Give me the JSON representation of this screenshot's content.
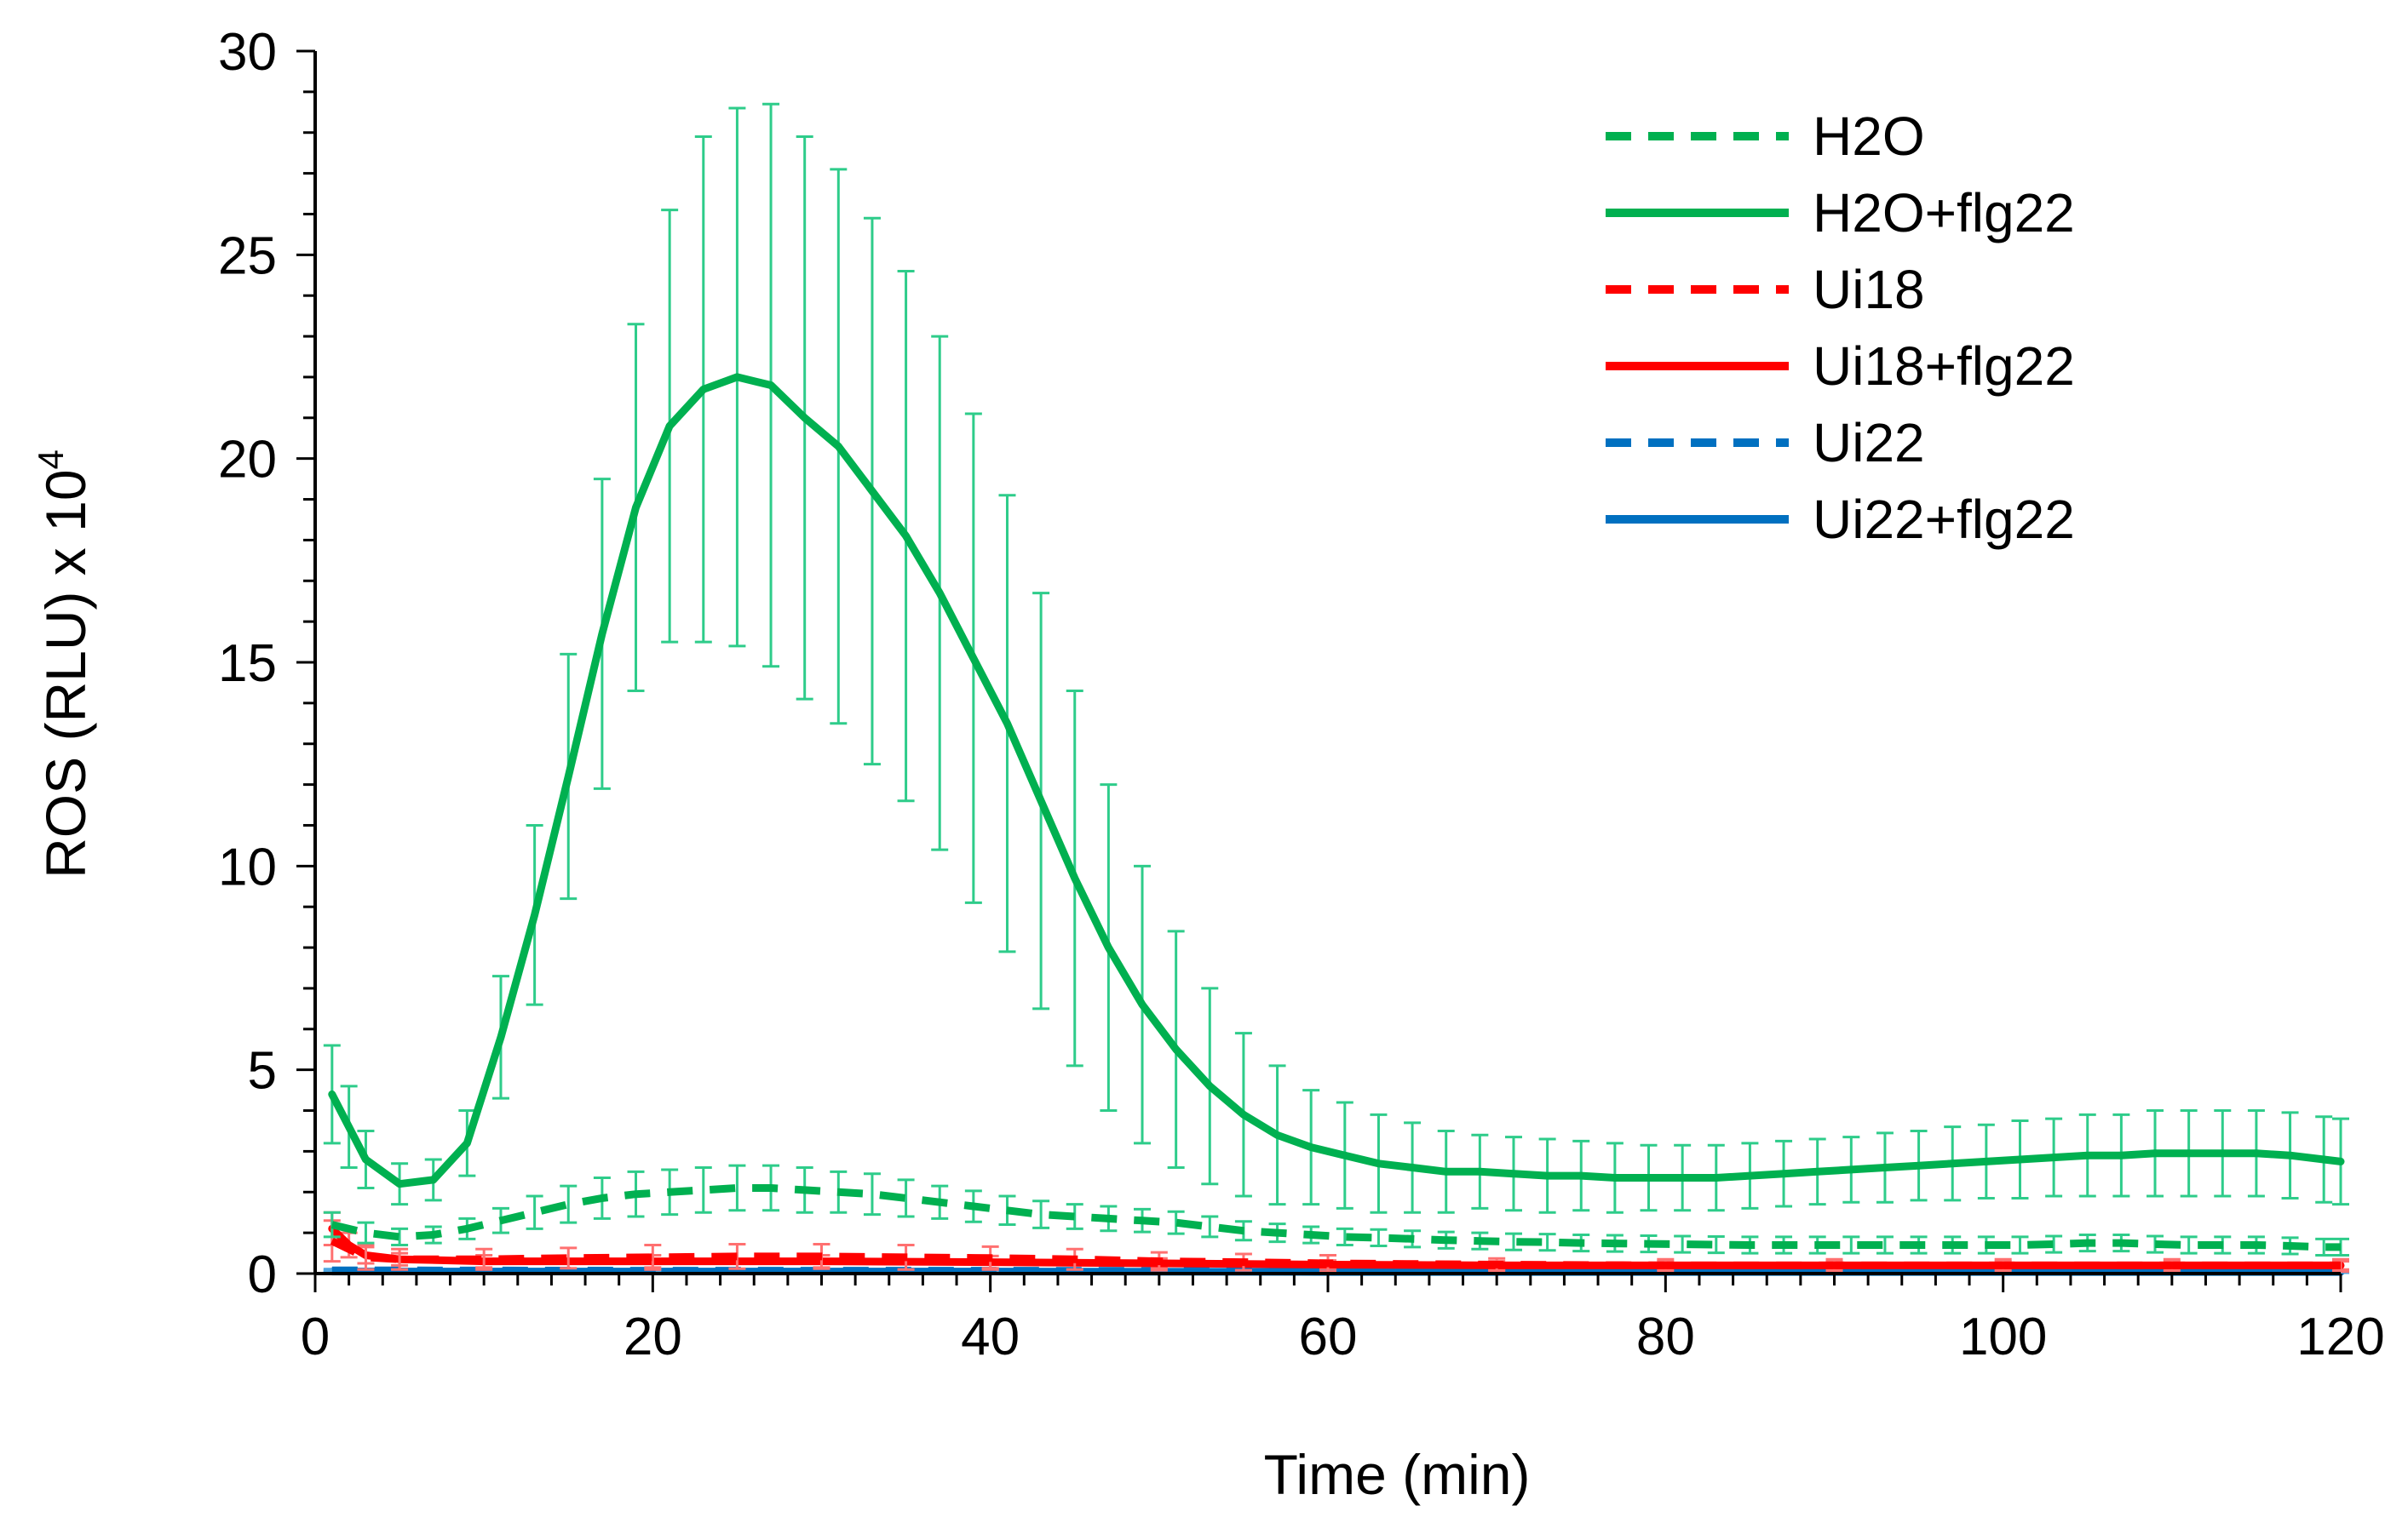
{
  "chart_data": {
    "type": "line",
    "title": "",
    "xlabel": "Time (min)",
    "ylabel": "ROS (RLU)  x 10",
    "ylabel_exponent": "4",
    "xlim": [
      0,
      120
    ],
    "ylim": [
      0,
      30
    ],
    "x_ticks": [
      0,
      20,
      40,
      60,
      80,
      100,
      120
    ],
    "y_ticks": [
      0,
      5,
      10,
      15,
      20,
      25,
      30
    ],
    "grid": false,
    "legend_position": "top-right",
    "series": [
      {
        "name": "H2O",
        "color": "#00b050",
        "error_color": "#2ecc8a",
        "dashed": true,
        "points": [
          [
            1,
            1.2
          ],
          [
            3,
            1.0
          ],
          [
            5,
            0.9
          ],
          [
            7,
            0.95
          ],
          [
            9,
            1.1
          ],
          [
            11,
            1.3
          ],
          [
            13,
            1.5
          ],
          [
            15,
            1.7
          ],
          [
            17,
            1.85
          ],
          [
            19,
            1.95
          ],
          [
            21,
            2.0
          ],
          [
            23,
            2.05
          ],
          [
            25,
            2.1
          ],
          [
            27,
            2.1
          ],
          [
            29,
            2.05
          ],
          [
            31,
            2.0
          ],
          [
            33,
            1.95
          ],
          [
            35,
            1.85
          ],
          [
            37,
            1.75
          ],
          [
            39,
            1.65
          ],
          [
            41,
            1.55
          ],
          [
            43,
            1.45
          ],
          [
            45,
            1.4
          ],
          [
            47,
            1.35
          ],
          [
            49,
            1.3
          ],
          [
            51,
            1.25
          ],
          [
            53,
            1.15
          ],
          [
            55,
            1.05
          ],
          [
            57,
            1.0
          ],
          [
            59,
            0.95
          ],
          [
            61,
            0.9
          ],
          [
            63,
            0.88
          ],
          [
            65,
            0.85
          ],
          [
            67,
            0.82
          ],
          [
            69,
            0.8
          ],
          [
            71,
            0.78
          ],
          [
            73,
            0.77
          ],
          [
            75,
            0.75
          ],
          [
            77,
            0.74
          ],
          [
            79,
            0.73
          ],
          [
            81,
            0.72
          ],
          [
            83,
            0.71
          ],
          [
            85,
            0.7
          ],
          [
            87,
            0.7
          ],
          [
            89,
            0.7
          ],
          [
            91,
            0.7
          ],
          [
            93,
            0.7
          ],
          [
            95,
            0.7
          ],
          [
            97,
            0.7
          ],
          [
            99,
            0.7
          ],
          [
            101,
            0.7
          ],
          [
            103,
            0.72
          ],
          [
            105,
            0.75
          ],
          [
            107,
            0.75
          ],
          [
            109,
            0.72
          ],
          [
            111,
            0.7
          ],
          [
            113,
            0.7
          ],
          [
            115,
            0.7
          ],
          [
            117,
            0.68
          ],
          [
            119,
            0.65
          ],
          [
            120,
            0.65
          ]
        ],
        "errors": [
          0.3,
          0.25,
          0.2,
          0.2,
          0.25,
          0.3,
          0.4,
          0.45,
          0.5,
          0.55,
          0.55,
          0.55,
          0.55,
          0.55,
          0.55,
          0.5,
          0.5,
          0.45,
          0.4,
          0.38,
          0.35,
          0.33,
          0.3,
          0.3,
          0.28,
          0.27,
          0.25,
          0.23,
          0.22,
          0.2,
          0.2,
          0.2,
          0.2,
          0.2,
          0.2,
          0.2,
          0.2,
          0.2,
          0.2,
          0.2,
          0.2,
          0.2,
          0.2,
          0.2,
          0.2,
          0.2,
          0.2,
          0.2,
          0.2,
          0.2,
          0.2,
          0.2,
          0.2,
          0.2,
          0.2,
          0.2,
          0.2,
          0.2,
          0.2,
          0.2,
          0.2
        ]
      },
      {
        "name": "H2O+flg22",
        "color": "#00b050",
        "error_color": "#2ecc8a",
        "dashed": false,
        "points": [
          [
            1,
            4.4
          ],
          [
            2,
            3.6
          ],
          [
            3,
            2.8
          ],
          [
            5,
            2.2
          ],
          [
            7,
            2.3
          ],
          [
            9,
            3.2
          ],
          [
            11,
            5.8
          ],
          [
            13,
            8.8
          ],
          [
            15,
            12.2
          ],
          [
            17,
            15.7
          ],
          [
            19,
            18.8
          ],
          [
            21,
            20.8
          ],
          [
            23,
            21.7
          ],
          [
            25,
            22.0
          ],
          [
            27,
            21.8
          ],
          [
            29,
            21.0
          ],
          [
            31,
            20.3
          ],
          [
            33,
            19.2
          ],
          [
            35,
            18.1
          ],
          [
            37,
            16.7
          ],
          [
            39,
            15.1
          ],
          [
            41,
            13.5
          ],
          [
            43,
            11.6
          ],
          [
            45,
            9.7
          ],
          [
            47,
            8.0
          ],
          [
            49,
            6.6
          ],
          [
            51,
            5.5
          ],
          [
            53,
            4.6
          ],
          [
            55,
            3.9
          ],
          [
            57,
            3.4
          ],
          [
            59,
            3.1
          ],
          [
            61,
            2.9
          ],
          [
            63,
            2.7
          ],
          [
            65,
            2.6
          ],
          [
            67,
            2.5
          ],
          [
            69,
            2.5
          ],
          [
            71,
            2.45
          ],
          [
            73,
            2.4
          ],
          [
            75,
            2.4
          ],
          [
            77,
            2.35
          ],
          [
            79,
            2.35
          ],
          [
            81,
            2.35
          ],
          [
            83,
            2.35
          ],
          [
            85,
            2.4
          ],
          [
            87,
            2.45
          ],
          [
            89,
            2.5
          ],
          [
            91,
            2.55
          ],
          [
            93,
            2.6
          ],
          [
            95,
            2.65
          ],
          [
            97,
            2.7
          ],
          [
            99,
            2.75
          ],
          [
            101,
            2.8
          ],
          [
            103,
            2.85
          ],
          [
            105,
            2.9
          ],
          [
            107,
            2.9
          ],
          [
            109,
            2.95
          ],
          [
            111,
            2.95
          ],
          [
            113,
            2.95
          ],
          [
            115,
            2.95
          ],
          [
            117,
            2.9
          ],
          [
            119,
            2.8
          ],
          [
            120,
            2.75
          ]
        ],
        "errors": [
          1.2,
          1.0,
          0.7,
          0.5,
          0.5,
          0.8,
          1.5,
          2.2,
          3.0,
          3.8,
          4.5,
          5.3,
          6.2,
          6.6,
          6.9,
          6.9,
          6.8,
          6.7,
          6.5,
          6.3,
          6.0,
          5.6,
          5.1,
          4.6,
          4.0,
          3.4,
          2.9,
          2.4,
          2.0,
          1.7,
          1.4,
          1.3,
          1.2,
          1.1,
          1.0,
          0.9,
          0.9,
          0.9,
          0.85,
          0.85,
          0.8,
          0.8,
          0.8,
          0.8,
          0.8,
          0.8,
          0.8,
          0.85,
          0.85,
          0.9,
          0.9,
          0.95,
          0.95,
          1.0,
          1.0,
          1.05,
          1.05,
          1.05,
          1.05,
          1.05,
          1.05,
          1.05
        ]
      },
      {
        "name": "Ui18",
        "color": "#ff0000",
        "error_color": "#ff7070",
        "dashed": true,
        "points": [
          [
            1,
            0.8
          ],
          [
            3,
            0.4
          ],
          [
            5,
            0.35
          ],
          [
            10,
            0.35
          ],
          [
            15,
            0.38
          ],
          [
            20,
            0.4
          ],
          [
            25,
            0.42
          ],
          [
            30,
            0.42
          ],
          [
            35,
            0.4
          ],
          [
            40,
            0.38
          ],
          [
            45,
            0.35
          ],
          [
            50,
            0.3
          ],
          [
            55,
            0.28
          ],
          [
            60,
            0.25
          ],
          [
            70,
            0.22
          ],
          [
            80,
            0.2
          ],
          [
            90,
            0.2
          ],
          [
            100,
            0.2
          ],
          [
            110,
            0.2
          ],
          [
            120,
            0.2
          ]
        ],
        "errors": [
          0.5,
          0.3,
          0.25,
          0.25,
          0.25,
          0.3,
          0.3,
          0.3,
          0.3,
          0.28,
          0.25,
          0.22,
          0.2,
          0.2,
          0.15,
          0.15,
          0.15,
          0.15,
          0.15,
          0.15
        ]
      },
      {
        "name": "Ui18+flg22",
        "color": "#ff0000",
        "error_color": "#ff7070",
        "dashed": false,
        "points": [
          [
            1,
            1.1
          ],
          [
            2,
            0.7
          ],
          [
            3,
            0.45
          ],
          [
            5,
            0.35
          ],
          [
            10,
            0.3
          ],
          [
            20,
            0.3
          ],
          [
            30,
            0.3
          ],
          [
            40,
            0.28
          ],
          [
            50,
            0.25
          ],
          [
            60,
            0.22
          ],
          [
            70,
            0.2
          ],
          [
            80,
            0.2
          ],
          [
            90,
            0.2
          ],
          [
            100,
            0.2
          ],
          [
            110,
            0.2
          ],
          [
            120,
            0.2
          ]
        ],
        "errors": [
          0.4,
          0.3,
          0.2,
          0.15,
          0.15,
          0.15,
          0.15,
          0.15,
          0.12,
          0.1,
          0.1,
          0.1,
          0.1,
          0.1,
          0.1,
          0.1
        ]
      },
      {
        "name": "Ui22",
        "color": "#0070c0",
        "error_color": "#4ea6e0",
        "dashed": true,
        "points": [
          [
            1,
            0.08
          ],
          [
            20,
            0.07
          ],
          [
            40,
            0.07
          ],
          [
            60,
            0.06
          ],
          [
            80,
            0.06
          ],
          [
            100,
            0.06
          ],
          [
            120,
            0.06
          ]
        ],
        "errors": [
          0.03,
          0.03,
          0.03,
          0.03,
          0.03,
          0.03,
          0.03
        ]
      },
      {
        "name": "Ui22+flg22",
        "color": "#0070c0",
        "error_color": "#4ea6e0",
        "dashed": false,
        "points": [
          [
            1,
            0.05
          ],
          [
            20,
            0.05
          ],
          [
            40,
            0.05
          ],
          [
            60,
            0.04
          ],
          [
            80,
            0.04
          ],
          [
            100,
            0.04
          ],
          [
            120,
            0.04
          ]
        ],
        "errors": [
          0.02,
          0.02,
          0.02,
          0.02,
          0.02,
          0.02,
          0.02
        ]
      }
    ]
  }
}
